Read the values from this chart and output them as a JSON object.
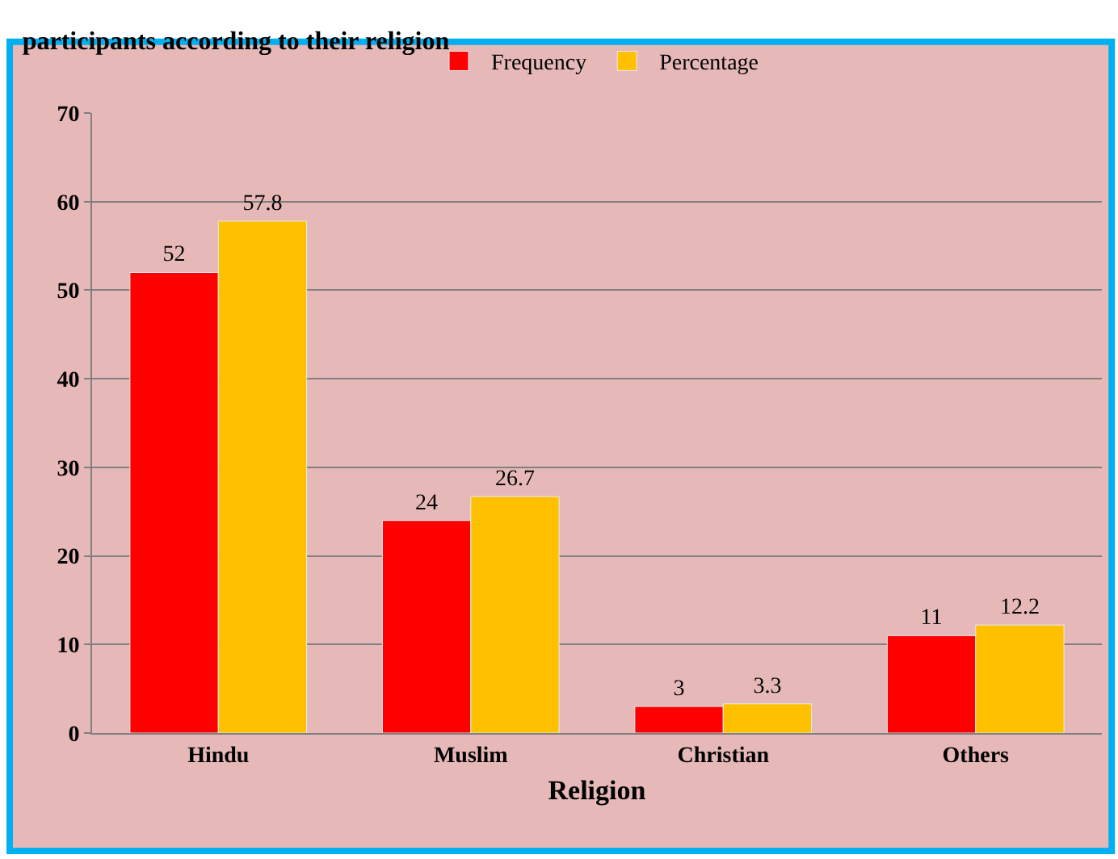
{
  "chart_data": {
    "type": "bar",
    "title": "participants according to their religion",
    "xlabel": "Religion",
    "categories": [
      "Hindu",
      "Muslim",
      "Christian",
      "Others"
    ],
    "series": [
      {
        "name": "Frequency",
        "color": "#ff0000",
        "values": [
          52,
          24,
          3,
          11
        ]
      },
      {
        "name": "Percentage",
        "color": "#ffc000",
        "values": [
          57.8,
          26.7,
          3.3,
          12.2
        ]
      }
    ],
    "ylim": [
      0,
      70
    ],
    "yticks": [
      0,
      10,
      20,
      30,
      40,
      50,
      60,
      70
    ],
    "grid": "y",
    "legend": "top",
    "data_labels": true
  }
}
